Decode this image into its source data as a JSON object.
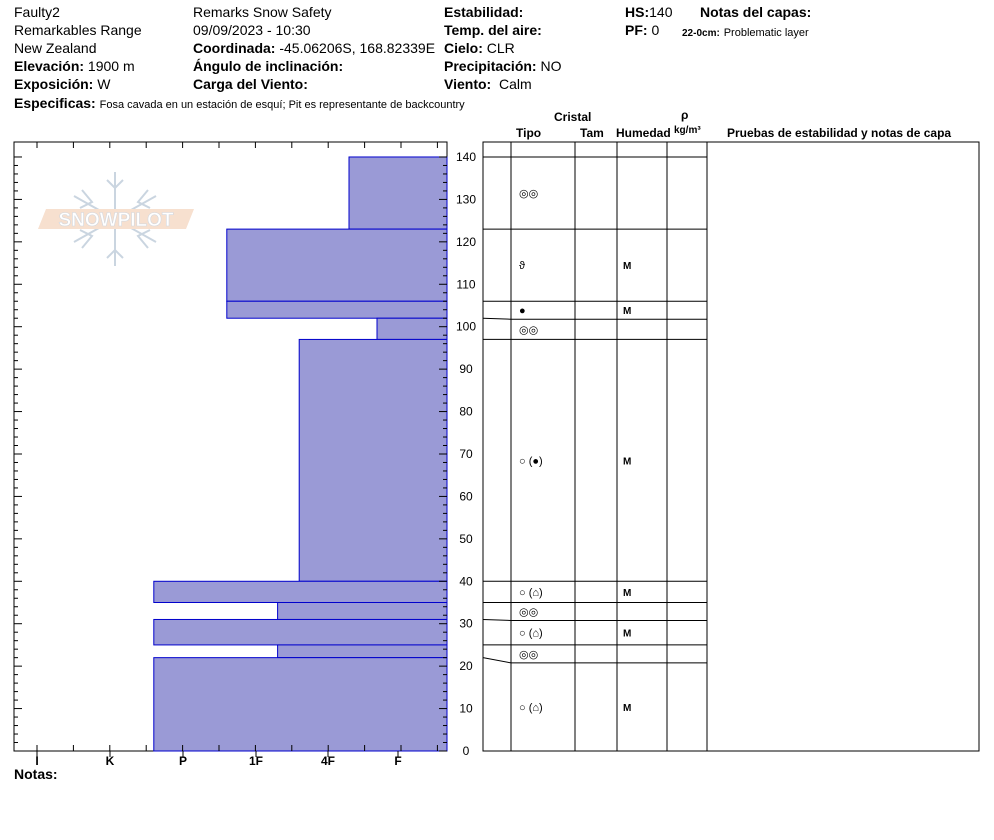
{
  "header": {
    "pit_name": "Faulty2",
    "range": "Remarkables Range",
    "country": "New Zealand",
    "elevation_label": "Elevación:",
    "elevation_value": "1900 m",
    "exposure_label": "Exposición:",
    "exposure_value": "W",
    "specifics_label": "Especificas:",
    "specifics_value": "Fosa cavada en un estación de esquí; Pit es representante de backcountry",
    "operation": "Remarks Snow Safety",
    "datetime": "09/09/2023 - 10:30",
    "coord_label": "Coordinada:",
    "coord_value": "-45.06206S, 168.82339E",
    "slope_label": "Ángulo de inclinación:",
    "wind_load_label": "Carga del Viento:",
    "stability_label": "Estabilidad:",
    "air_temp_label": "Temp. del aire:",
    "sky_label": "Cielo:",
    "sky_value": "CLR",
    "precip_label": "Precipitación:",
    "precip_value": "NO",
    "wind_label": "Viento:",
    "wind_value": "Calm",
    "hs_label": "HS:",
    "hs_value": "140",
    "pf_label": "PF:",
    "pf_value": "0",
    "layer_notes_label": "Notas del capas:",
    "layer_note_depth": "22-0cm:",
    "layer_note_text": "Problematic layer"
  },
  "columns": {
    "cristal": "Cristal",
    "tipo": "Tipo",
    "tam": "Tam",
    "humedad": "Humedad",
    "rho": "ρ",
    "density_unit": "kg/m³",
    "tests": "Pruebas de estabilidad y notas de capa"
  },
  "logo_text": "SNOWPILOT",
  "notes_label": "Notas:",
  "chart_data": {
    "type": "bar",
    "orientation": "horizontal",
    "y_axis": {
      "min": 0,
      "max": 140,
      "ticks": [
        0,
        10,
        20,
        30,
        40,
        50,
        60,
        70,
        80,
        90,
        100,
        110,
        120,
        130,
        140
      ],
      "label": ""
    },
    "x_axis": {
      "categories": [
        "I",
        "K",
        "P",
        "1F",
        "4F",
        "F"
      ],
      "label": ""
    },
    "hardness_scale": [
      "I",
      "K",
      "P",
      "1F",
      "4F",
      "F"
    ],
    "layers": [
      {
        "top": 140,
        "bottom": 123,
        "hardness_index": 4.3,
        "grain": "◎◎",
        "moisture": ""
      },
      {
        "top": 123,
        "bottom": 106,
        "hardness_index": 2.6,
        "grain": "ϑ",
        "moisture": "M"
      },
      {
        "top": 106,
        "bottom": 102,
        "hardness_index": 2.6,
        "grain": "●",
        "moisture": "M"
      },
      {
        "top": 102,
        "bottom": 97,
        "hardness_index": 4.7,
        "grain": "◎◎",
        "moisture": ""
      },
      {
        "top": 97,
        "bottom": 40,
        "hardness_index": 3.6,
        "grain": "○ (●)",
        "moisture": "M"
      },
      {
        "top": 40,
        "bottom": 35,
        "hardness_index": 1.6,
        "grain": "○ (⌂)",
        "moisture": "M"
      },
      {
        "top": 35,
        "bottom": 31,
        "hardness_index": 3.3,
        "grain": "◎◎",
        "moisture": ""
      },
      {
        "top": 31,
        "bottom": 25,
        "hardness_index": 1.6,
        "grain": "○ (⌂)",
        "moisture": "M"
      },
      {
        "top": 25,
        "bottom": 22,
        "hardness_index": 3.3,
        "grain": "◎◎",
        "moisture": ""
      },
      {
        "top": 22,
        "bottom": 0,
        "hardness_index": 1.6,
        "grain": "○ (⌂)",
        "moisture": "M"
      }
    ],
    "colors": {
      "bar_fill": "#9a9ad6",
      "bar_stroke": "#0000cc"
    }
  }
}
